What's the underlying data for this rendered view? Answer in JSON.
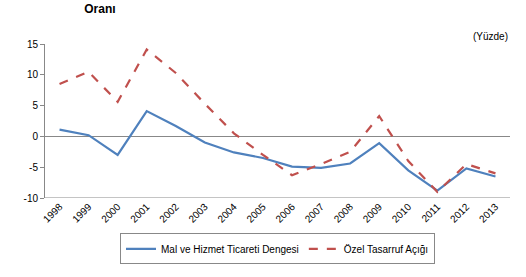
{
  "chart_data": {
    "type": "line",
    "title": "Oranı",
    "annotations": [
      "(Yüzde)"
    ],
    "categories": [
      "1998",
      "1999",
      "2000",
      "2001",
      "2002",
      "2003",
      "2004",
      "2005",
      "2006",
      "2007",
      "2008",
      "2009",
      "2010",
      "2011",
      "2012",
      "2013"
    ],
    "series": [
      {
        "name": "Mal ve Hizmet Ticareti Dengesi",
        "color": "#4f81bd",
        "line_style": "solid",
        "values": [
          1.1,
          0.2,
          -3.0,
          4.1,
          1.7,
          -1.0,
          -2.6,
          -3.5,
          -4.9,
          -5.1,
          -4.4,
          -1.1,
          -5.5,
          -8.8,
          -5.2,
          -6.5
        ]
      },
      {
        "name": "Özel Tasarruf Açığı",
        "color": "#c0504d",
        "line_style": "dash",
        "values": [
          8.5,
          10.5,
          5.6,
          14.1,
          10.3,
          5.3,
          0.5,
          -3.0,
          -6.3,
          -4.5,
          -2.5,
          3.3,
          -4.0,
          -9.0,
          -4.5,
          -6.0
        ]
      }
    ],
    "ylim": [
      -10,
      15
    ],
    "yticks": [
      -10,
      -5,
      0,
      5,
      10,
      15
    ],
    "grid": false,
    "legend": "bottom"
  }
}
